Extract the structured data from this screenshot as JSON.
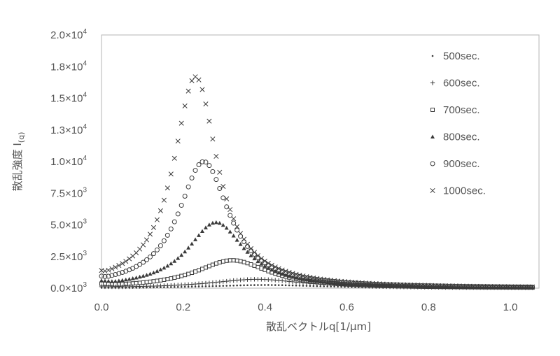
{
  "chart_data": {
    "type": "scatter",
    "title": "",
    "xlabel": "散乱ベクトルq[1/μm]",
    "ylabel": "散乱強度 I(q)",
    "ylabel_main": "散乱強度 I",
    "ylabel_sub": "(q)",
    "xlim": [
      0,
      1.07
    ],
    "ylim": [
      0,
      20000
    ],
    "grid": false,
    "legend_position": "right",
    "x_ticks": [
      "0.0",
      "0.2",
      "0.4",
      "0.6",
      "0.8",
      "1.0"
    ],
    "x_tick_values": [
      0,
      0.2,
      0.4,
      0.6,
      0.8,
      1.0
    ],
    "y_ticks": [
      {
        "value": 0,
        "mantissa": "0.0×10",
        "exp": "3"
      },
      {
        "value": 2500,
        "mantissa": "2.5×10",
        "exp": "3"
      },
      {
        "value": 5000,
        "mantissa": "5.0×10",
        "exp": "3"
      },
      {
        "value": 7500,
        "mantissa": "7.5×10",
        "exp": "3"
      },
      {
        "value": 10000,
        "mantissa": "1.0×10",
        "exp": "4"
      },
      {
        "value": 12500,
        "mantissa": "1.3×10",
        "exp": "4"
      },
      {
        "value": 15000,
        "mantissa": "1.5×10",
        "exp": "4"
      },
      {
        "value": 17500,
        "mantissa": "1.8×10",
        "exp": "4"
      },
      {
        "value": 20000,
        "mantissa": "2.0×10",
        "exp": "4"
      }
    ],
    "series": [
      {
        "name": "500sec.",
        "marker": "dot",
        "peak_q": 0.4,
        "peak_intensity": 250,
        "base_intensity": 50,
        "width": 0.17
      },
      {
        "name": "600sec.",
        "marker": "plus",
        "peak_q": 0.38,
        "peak_intensity": 700,
        "base_intensity": 120,
        "width": 0.14
      },
      {
        "name": "700sec.",
        "marker": "square",
        "peak_q": 0.32,
        "peak_intensity": 2200,
        "base_intensity": 350,
        "width": 0.11
      },
      {
        "name": "800sec.",
        "marker": "triangle",
        "peak_q": 0.28,
        "peak_intensity": 5200,
        "base_intensity": 600,
        "width": 0.085
      },
      {
        "name": "900sec.",
        "marker": "circle",
        "peak_q": 0.25,
        "peak_intensity": 10000,
        "base_intensity": 950,
        "width": 0.075
      },
      {
        "name": "1000sec.",
        "marker": "cross",
        "peak_q": 0.23,
        "peak_intensity": 16700,
        "base_intensity": 1400,
        "width": 0.065
      }
    ],
    "marker_color": "#3a3a3a",
    "axis_color": "#aaaaaa"
  }
}
